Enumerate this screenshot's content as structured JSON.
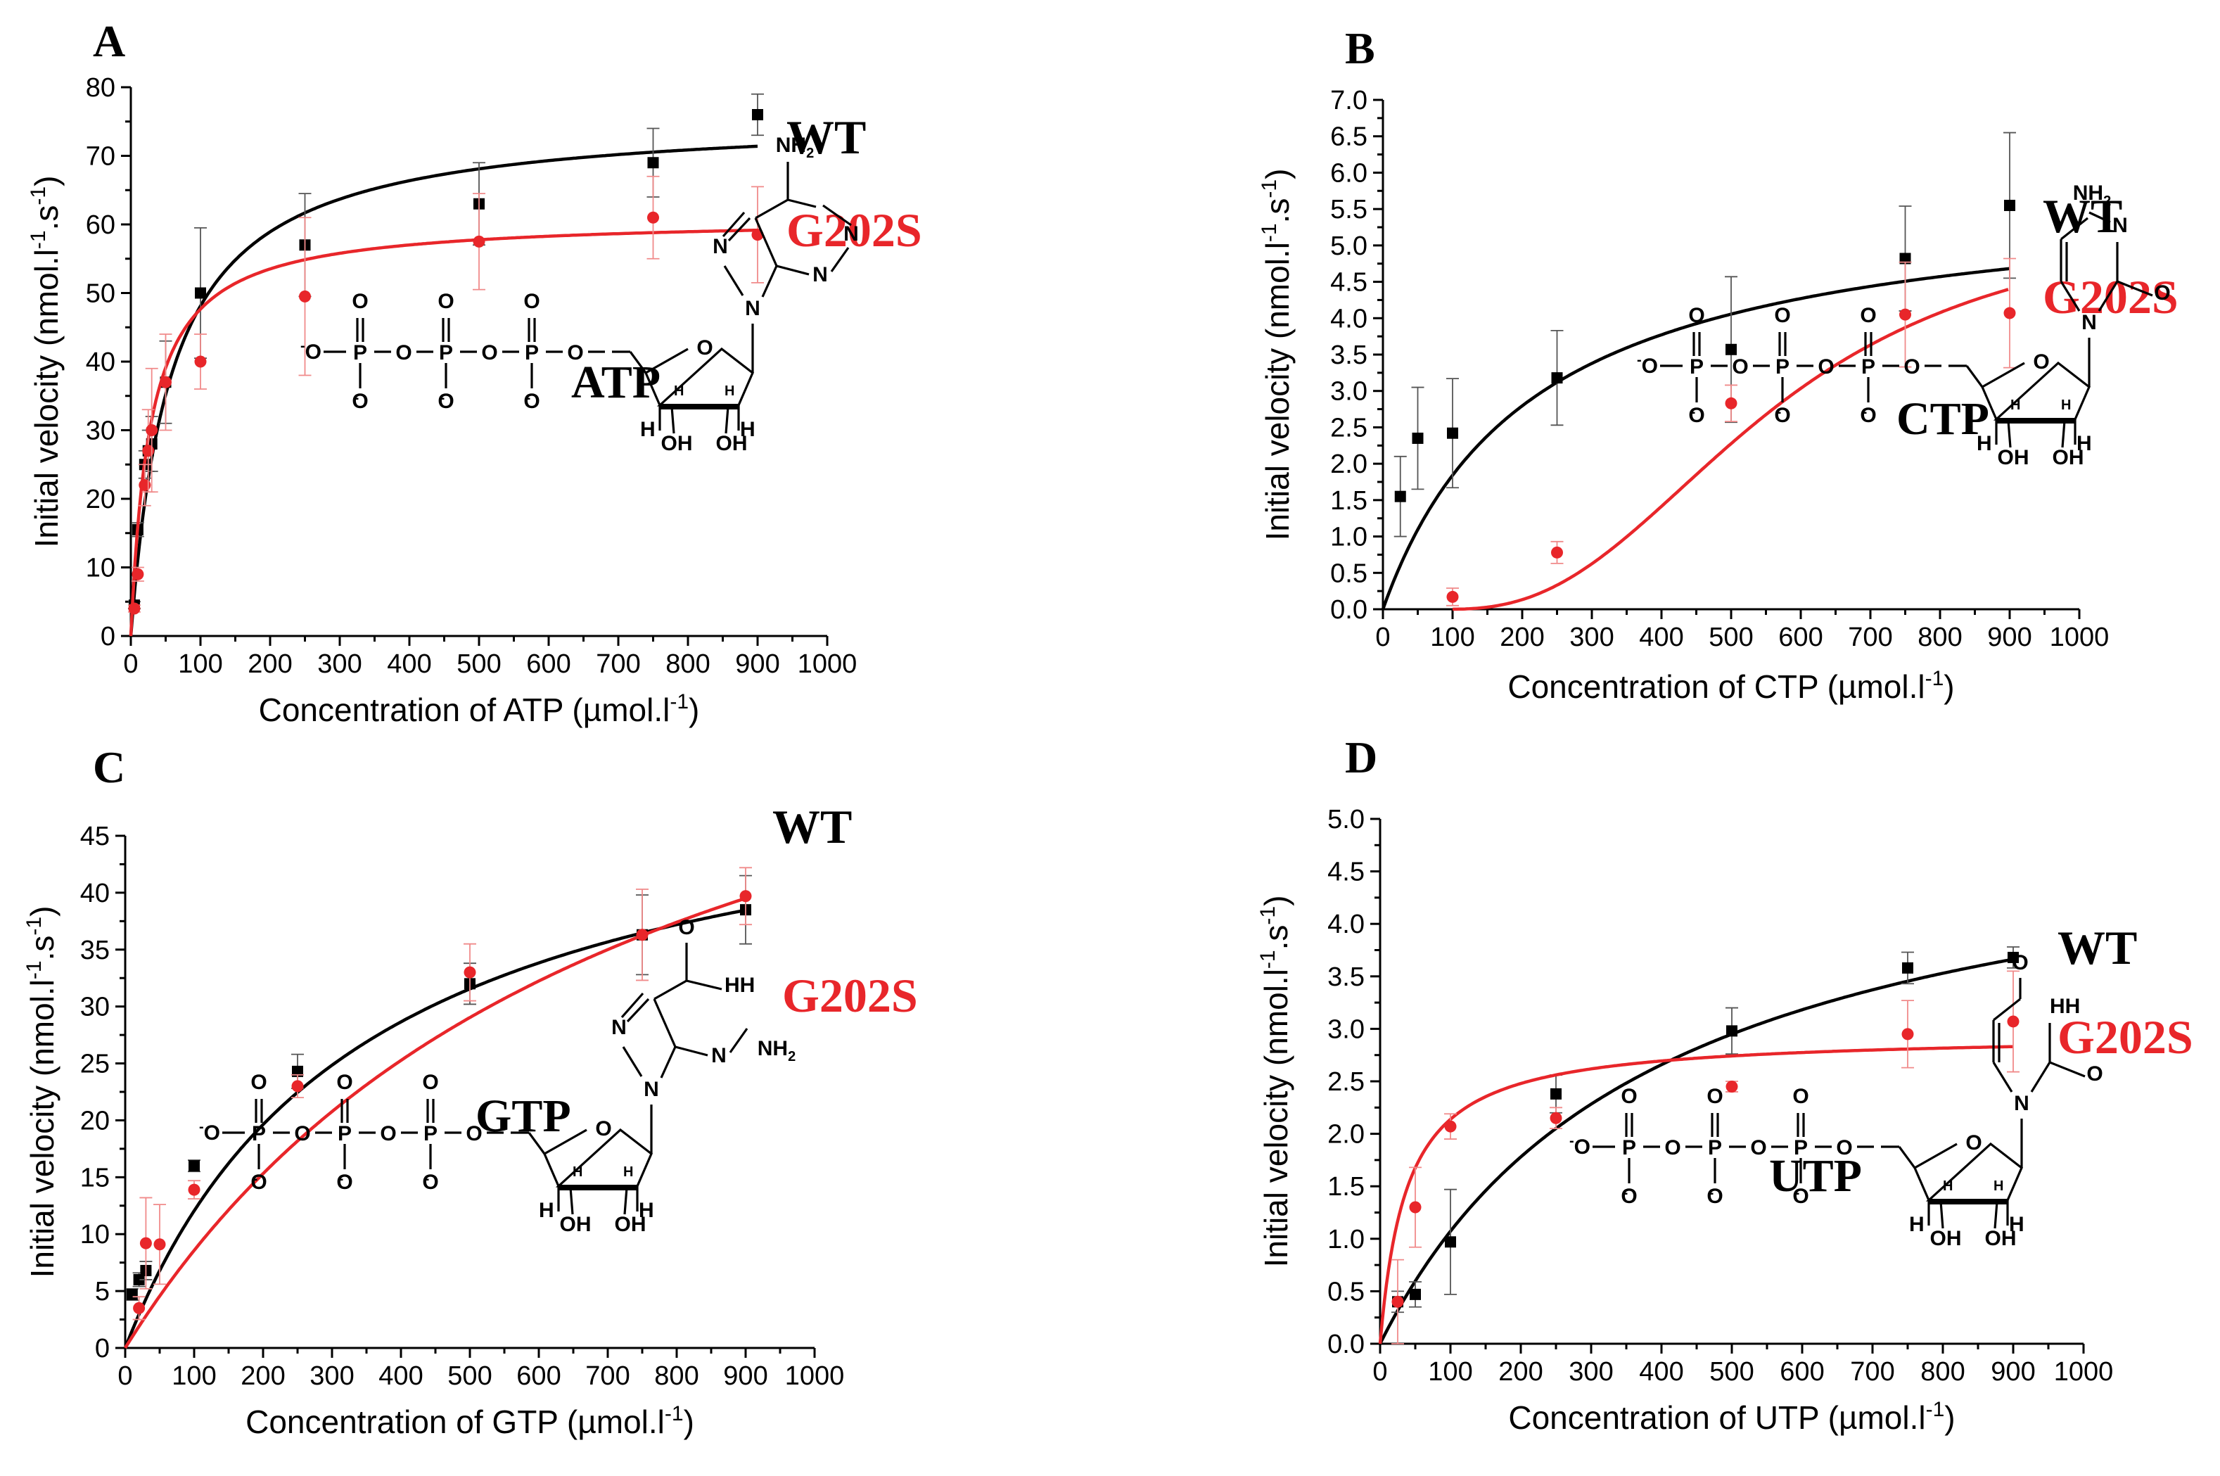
{
  "colors": {
    "wt": "#000000",
    "g202s": "#e8262a",
    "axis": "#000000"
  },
  "chart_data": [
    {
      "panel": "A",
      "type": "scatter",
      "fit": "michaelis-menten",
      "xlabel": "Concentration of ATP (µmol.l",
      "xlabel_sup": "-1",
      "xlabel_end": ")",
      "ylabel": "Initial velocity (nmol.l",
      "ylabel_sup1": "-1",
      "ylabel_mid": ".s",
      "ylabel_sup2": "-1",
      "ylabel_end": ")",
      "xlim": [
        0,
        1000
      ],
      "ylim": [
        0,
        80
      ],
      "xticks": [
        0,
        100,
        200,
        300,
        400,
        500,
        600,
        700,
        800,
        900,
        1000
      ],
      "yticks": [
        0,
        10,
        20,
        30,
        40,
        50,
        60,
        70,
        80
      ],
      "ytick_decimals": 0,
      "molecule": "ATP",
      "base": "adenine",
      "series": [
        {
          "name": "WT",
          "x": [
            5,
            10,
            20,
            25,
            30,
            50,
            100,
            250,
            500,
            750,
            900
          ],
          "y": [
            4.5,
            15.5,
            25,
            27,
            28,
            37,
            50,
            57,
            63,
            69,
            76
          ],
          "err": [
            0.5,
            1,
            2,
            3,
            4,
            6,
            9.5,
            7.5,
            6,
            5,
            3
          ],
          "fit_params": {
            "Vmax": 76,
            "Km": 58
          }
        },
        {
          "name": "G202S",
          "x": [
            5,
            10,
            20,
            25,
            30,
            50,
            100,
            250,
            500,
            750,
            900
          ],
          "y": [
            4,
            9,
            22,
            27,
            30,
            37,
            40,
            49.5,
            57.5,
            61,
            58.5
          ],
          "err": [
            0.5,
            1,
            3,
            6,
            9,
            7,
            4,
            11.5,
            7,
            6,
            7
          ],
          "fit_params": {
            "Vmax": 61,
            "Km": 28
          }
        }
      ],
      "labels": [
        "WT",
        "G202S"
      ]
    },
    {
      "panel": "B",
      "type": "scatter",
      "fit": "michaelis-menten / hill",
      "xlabel": "Concentration of CTP (µmol.l",
      "xlabel_sup": "-1",
      "xlabel_end": ")",
      "ylabel": "Initial velocity (nmol.l",
      "ylabel_sup1": "-1",
      "ylabel_mid": ".s",
      "ylabel_sup2": "-1",
      "ylabel_end": ")",
      "xlim": [
        0,
        1000
      ],
      "ylim": [
        0,
        7
      ],
      "xticks": [
        0,
        100,
        200,
        300,
        400,
        500,
        600,
        700,
        800,
        900,
        1000
      ],
      "yticks": [
        0,
        0.5,
        1,
        1.5,
        2,
        2.5,
        3,
        3.5,
        4,
        4.5,
        5,
        5.5,
        6,
        6.5,
        7
      ],
      "ytick_decimals": 1,
      "molecule": "CTP",
      "base": "cytosine",
      "series": [
        {
          "name": "WT",
          "x": [
            25,
            50,
            100,
            250,
            500,
            750,
            900
          ],
          "y": [
            1.55,
            2.35,
            2.42,
            3.18,
            3.57,
            4.82,
            5.55
          ],
          "err": [
            0.55,
            0.7,
            0.75,
            0.65,
            1.0,
            0.72,
            1.0
          ],
          "fit_params": {
            "Vmax": 5.8,
            "Km": 215
          }
        },
        {
          "name": "G202S",
          "x": [
            100,
            250,
            500,
            750,
            900
          ],
          "y": [
            0.17,
            0.78,
            2.83,
            4.05,
            4.07
          ],
          "err": [
            0.12,
            0.15,
            0.25,
            0.72,
            0.75
          ],
          "fit_params": {
            "Vmax": 5.5,
            "K": 470,
            "n": 2.55,
            "x0": 90
          }
        }
      ],
      "labels": [
        "WT",
        "G202S"
      ]
    },
    {
      "panel": "C",
      "type": "scatter",
      "fit": "michaelis-menten",
      "xlabel": "Concentration of GTP (µmol.l",
      "xlabel_sup": "-1",
      "xlabel_end": ")",
      "ylabel": "Initial velocity (nmol.l",
      "ylabel_sup1": "-1",
      "ylabel_mid": ".s",
      "ylabel_sup2": "-1",
      "ylabel_end": ")",
      "xlim": [
        0,
        1000
      ],
      "ylim": [
        0,
        45
      ],
      "xticks": [
        0,
        100,
        200,
        300,
        400,
        500,
        600,
        700,
        800,
        900,
        1000
      ],
      "yticks": [
        0,
        5,
        10,
        15,
        20,
        25,
        30,
        35,
        40,
        45
      ],
      "ytick_decimals": 0,
      "molecule": "GTP",
      "base": "guanine",
      "series": [
        {
          "name": "WT",
          "x": [
            10,
            20,
            30,
            100,
            250,
            500,
            750,
            900
          ],
          "y": [
            4.7,
            6,
            6.8,
            16,
            24.3,
            32,
            36.3,
            38.5
          ],
          "err": [
            0.5,
            0.6,
            0.8,
            0.5,
            1.5,
            1.8,
            3.5,
            3
          ],
          "fit_params": {
            "Vmax": 53,
            "Km": 340
          }
        },
        {
          "name": "G202S",
          "x": [
            20,
            30,
            50,
            100,
            250,
            500,
            750,
            900
          ],
          "y": [
            3.5,
            9.2,
            9.1,
            13.9,
            23,
            33,
            36.3,
            39.7
          ],
          "err": [
            1,
            4,
            3.5,
            0.8,
            1,
            2.5,
            4,
            2.5
          ],
          "fit_params": {
            "Vmax": 72,
            "Km": 740
          }
        }
      ],
      "labels": [
        "WT",
        "G202S"
      ]
    },
    {
      "panel": "D",
      "type": "scatter",
      "fit": "michaelis-menten",
      "xlabel": "Concentration of UTP (µmol.l",
      "xlabel_sup": "-1",
      "xlabel_end": ")",
      "ylabel": "Initial velocity (nmol.l",
      "ylabel_sup1": "-1",
      "ylabel_mid": ".s",
      "ylabel_sup2": "-1",
      "ylabel_end": ")",
      "xlim": [
        0,
        1000
      ],
      "ylim": [
        0,
        5
      ],
      "xticks": [
        0,
        100,
        200,
        300,
        400,
        500,
        600,
        700,
        800,
        900,
        1000
      ],
      "yticks": [
        0,
        0.5,
        1,
        1.5,
        2,
        2.5,
        3,
        3.5,
        4,
        4.5,
        5
      ],
      "ytick_decimals": 1,
      "molecule": "UTP",
      "base": "uracil",
      "series": [
        {
          "name": "WT",
          "x": [
            25,
            50,
            100,
            250,
            500,
            750,
            900
          ],
          "y": [
            0.4,
            0.47,
            0.97,
            2.38,
            2.98,
            3.58,
            3.68
          ],
          "err": [
            0.1,
            0.12,
            0.5,
            0.18,
            0.22,
            0.15,
            0.1
          ],
          "fit_params": {
            "Vmax": 5.25,
            "Km": 390
          }
        },
        {
          "name": "G202S",
          "x": [
            25,
            50,
            100,
            250,
            500,
            750,
            900
          ],
          "y": [
            0.4,
            1.3,
            2.07,
            2.15,
            2.45,
            2.95,
            3.07
          ],
          "err": [
            0.4,
            0.38,
            0.12,
            0.1,
            0.05,
            0.32,
            0.48
          ],
          "fit_params": {
            "Vmax": 2.95,
            "Km": 38
          }
        }
      ],
      "labels": [
        "WT",
        "G202S"
      ]
    }
  ],
  "chemistry": {
    "phosphate_atom": "P",
    "oxygen_atom": "O",
    "hydrogen_atom": "H",
    "nitrogen_atom": "N",
    "oxy_anion": "O",
    "charge": "-",
    "hydroxyl": "OH",
    "amine": "NH",
    "amine_sub": "2"
  }
}
